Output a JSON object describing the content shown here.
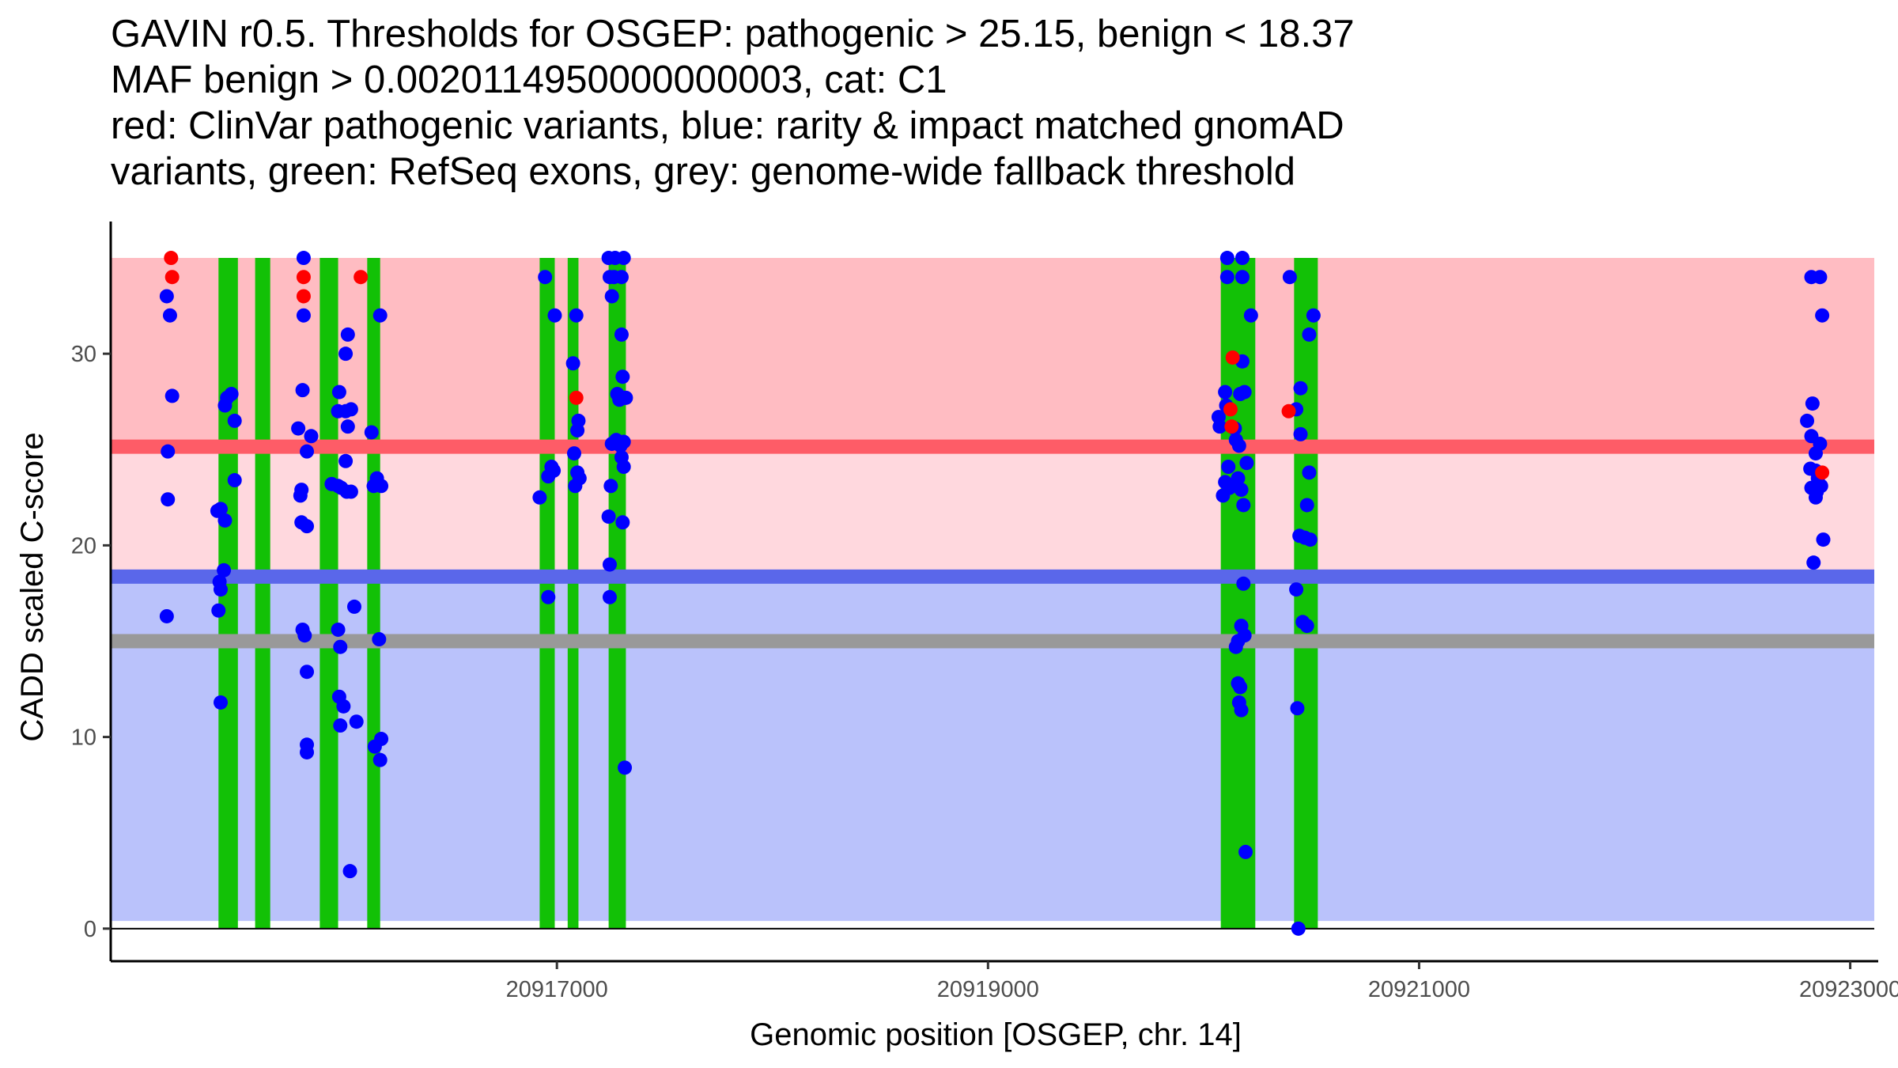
{
  "chart_data": {
    "type": "scatter",
    "title_lines": [
      "GAVIN r0.5. Thresholds for OSGEP: pathogenic > 25.15, benign < 18.37",
      "MAF benign > 0.0020114950000000003, cat: C1",
      "red: ClinVar pathogenic variants, blue: rarity & impact matched gnomAD",
      "variants, green: RefSeq exons, grey: genome-wide fallback threshold"
    ],
    "xlabel": "Genomic position [OSGEP, chr. 14]",
    "ylabel": "CADD scaled C-score",
    "xlim": [
      20914930,
      20923130
    ],
    "ylim": [
      -1.7,
      36.9
    ],
    "xticks": [
      20917000,
      20919000,
      20921000,
      20923000
    ],
    "yticks": [
      0,
      10,
      20,
      30
    ],
    "thresholds": {
      "pathogenic": 25.15,
      "benign": 18.37,
      "genome_wide_fallback": 15.0,
      "max": 35
    },
    "exons": [
      [
        20915430,
        20915520
      ],
      [
        20915600,
        20915670
      ],
      [
        20915900,
        20915985
      ],
      [
        20916120,
        20916180
      ],
      [
        20916920,
        20916990
      ],
      [
        20917050,
        20917100
      ],
      [
        20917240,
        20917320
      ],
      [
        20920080,
        20920240
      ],
      [
        20920420,
        20920530
      ]
    ],
    "colors": {
      "pathogenic_zone": "#ffbcc2",
      "vus_zone": "#ffd8de",
      "benign_zone": "#bac2fb",
      "pathogenic_line": "#fe5c67",
      "benign_line": "#5a67ea",
      "fallback_line": "#999999",
      "exon": "#12c106",
      "clinvar_point": "#ff0000",
      "gnomad_point": "#0000ff"
    },
    "series": [
      {
        "name": "ClinVar pathogenic",
        "color": "#ff0000",
        "points": [
          [
            20915210,
            35
          ],
          [
            20915215,
            34
          ],
          [
            20915825,
            34
          ],
          [
            20915825,
            33
          ],
          [
            20916090,
            34
          ],
          [
            20917090,
            27.7
          ],
          [
            20920135,
            29.8
          ],
          [
            20920125,
            27.1
          ],
          [
            20920130,
            26.2
          ],
          [
            20920395,
            27
          ],
          [
            20922870,
            23.8
          ]
        ]
      },
      {
        "name": "gnomAD matched",
        "color": "#0000ff",
        "points": [
          [
            20915190,
            33
          ],
          [
            20915205,
            32
          ],
          [
            20915215,
            27.8
          ],
          [
            20915195,
            24.9
          ],
          [
            20915195,
            22.4
          ],
          [
            20915190,
            16.3
          ],
          [
            20915425,
            21.8
          ],
          [
            20915440,
            21.9
          ],
          [
            20915460,
            21.3
          ],
          [
            20915435,
            18.1
          ],
          [
            20915440,
            17.7
          ],
          [
            20915455,
            18.7
          ],
          [
            20915430,
            16.6
          ],
          [
            20915440,
            11.8
          ],
          [
            20915460,
            27.3
          ],
          [
            20915470,
            27.7
          ],
          [
            20915490,
            27.9
          ],
          [
            20915505,
            26.5
          ],
          [
            20915505,
            23.4
          ],
          [
            20915825,
            35
          ],
          [
            20915825,
            32
          ],
          [
            20915820,
            28.1
          ],
          [
            20915800,
            26.1
          ],
          [
            20915815,
            22.9
          ],
          [
            20915810,
            22.6
          ],
          [
            20915815,
            21.2
          ],
          [
            20915840,
            21.0
          ],
          [
            20915840,
            24.9
          ],
          [
            20915860,
            25.7
          ],
          [
            20915820,
            15.6
          ],
          [
            20915830,
            15.3
          ],
          [
            20915840,
            13.4
          ],
          [
            20915840,
            9.6
          ],
          [
            20915840,
            9.2
          ],
          [
            20915990,
            28
          ],
          [
            20915985,
            27.0
          ],
          [
            20916020,
            27.0
          ],
          [
            20916030,
            26.2
          ],
          [
            20916045,
            27.1
          ],
          [
            20916030,
            31
          ],
          [
            20916020,
            30.0
          ],
          [
            20916020,
            24.4
          ],
          [
            20915955,
            23.2
          ],
          [
            20915985,
            23.1
          ],
          [
            20916000,
            23.0
          ],
          [
            20916025,
            22.8
          ],
          [
            20916045,
            22.8
          ],
          [
            20915985,
            15.6
          ],
          [
            20915995,
            14.7
          ],
          [
            20916060,
            16.8
          ],
          [
            20915990,
            12.1
          ],
          [
            20916010,
            11.6
          ],
          [
            20915995,
            10.6
          ],
          [
            20916070,
            10.8
          ],
          [
            20916040,
            3.0
          ],
          [
            20916140,
            25.9
          ],
          [
            20916150,
            23.1
          ],
          [
            20916165,
            23.5
          ],
          [
            20916185,
            23.1
          ],
          [
            20916180,
            32
          ],
          [
            20916175,
            15.1
          ],
          [
            20916155,
            9.5
          ],
          [
            20916185,
            9.9
          ],
          [
            20916180,
            8.8
          ],
          [
            20916945,
            34
          ],
          [
            20916920,
            22.5
          ],
          [
            20916960,
            23.6
          ],
          [
            20916975,
            24.1
          ],
          [
            20916985,
            23.9
          ],
          [
            20916990,
            32
          ],
          [
            20916960,
            17.3
          ],
          [
            20917090,
            32
          ],
          [
            20917075,
            29.5
          ],
          [
            20917095,
            26.0
          ],
          [
            20917100,
            26.5
          ],
          [
            20917080,
            24.8
          ],
          [
            20917095,
            23.8
          ],
          [
            20917105,
            23.5
          ],
          [
            20917085,
            23.1
          ],
          [
            20917240,
            35
          ],
          [
            20917270,
            35
          ],
          [
            20917310,
            35
          ],
          [
            20917245,
            34
          ],
          [
            20917265,
            34
          ],
          [
            20917300,
            34
          ],
          [
            20917255,
            33
          ],
          [
            20917300,
            31
          ],
          [
            20917305,
            28.8
          ],
          [
            20917280,
            27.9
          ],
          [
            20917290,
            27.6
          ],
          [
            20917310,
            27.7
          ],
          [
            20917320,
            27.7
          ],
          [
            20917255,
            25.3
          ],
          [
            20917275,
            25.5
          ],
          [
            20917295,
            25.2
          ],
          [
            20917310,
            25.4
          ],
          [
            20917300,
            24.6
          ],
          [
            20917310,
            24.1
          ],
          [
            20917250,
            23.1
          ],
          [
            20917240,
            21.5
          ],
          [
            20917305,
            21.2
          ],
          [
            20917245,
            19.0
          ],
          [
            20917245,
            17.3
          ],
          [
            20917315,
            8.4
          ],
          [
            20920110,
            35
          ],
          [
            20920180,
            35
          ],
          [
            20920110,
            34
          ],
          [
            20920180,
            34
          ],
          [
            20920220,
            32
          ],
          [
            20920100,
            28.0
          ],
          [
            20920180,
            29.6
          ],
          [
            20920170,
            27.9
          ],
          [
            20920190,
            28.0
          ],
          [
            20920070,
            26.7
          ],
          [
            20920075,
            26.2
          ],
          [
            20920105,
            27.3
          ],
          [
            20920145,
            26.1
          ],
          [
            20920165,
            25.2
          ],
          [
            20920150,
            25.5
          ],
          [
            20920115,
            24.1
          ],
          [
            20920200,
            24.3
          ],
          [
            20920100,
            23.3
          ],
          [
            20920120,
            23.0
          ],
          [
            20920160,
            23.5
          ],
          [
            20920175,
            22.9
          ],
          [
            20920090,
            22.6
          ],
          [
            20920185,
            22.1
          ],
          [
            20920185,
            18.0
          ],
          [
            20920175,
            15.8
          ],
          [
            20920190,
            15.3
          ],
          [
            20920160,
            15.0
          ],
          [
            20920150,
            14.7
          ],
          [
            20920160,
            12.8
          ],
          [
            20920170,
            12.6
          ],
          [
            20920165,
            11.8
          ],
          [
            20920175,
            11.4
          ],
          [
            20920195,
            4.0
          ],
          [
            20920400,
            34
          ],
          [
            20920510,
            32
          ],
          [
            20920490,
            31
          ],
          [
            20920450,
            28.2
          ],
          [
            20920430,
            27.1
          ],
          [
            20920450,
            25.8
          ],
          [
            20920490,
            23.8
          ],
          [
            20920480,
            22.1
          ],
          [
            20920445,
            20.5
          ],
          [
            20920470,
            20.4
          ],
          [
            20920495,
            20.3
          ],
          [
            20920430,
            17.7
          ],
          [
            20920460,
            16.0
          ],
          [
            20920480,
            15.8
          ],
          [
            20920435,
            11.5
          ],
          [
            20920440,
            0.0
          ],
          [
            20922820,
            34
          ],
          [
            20922860,
            34
          ],
          [
            20922870,
            32
          ],
          [
            20922800,
            26.5
          ],
          [
            20922825,
            27.4
          ],
          [
            20922820,
            25.7
          ],
          [
            20922860,
            25.3
          ],
          [
            20922840,
            24.8
          ],
          [
            20922815,
            24.0
          ],
          [
            20922840,
            23.9
          ],
          [
            20922850,
            23.5
          ],
          [
            20922820,
            23.0
          ],
          [
            20922845,
            22.8
          ],
          [
            20922865,
            23.1
          ],
          [
            20922840,
            22.5
          ],
          [
            20922875,
            20.3
          ],
          [
            20922830,
            19.1
          ]
        ]
      }
    ]
  }
}
